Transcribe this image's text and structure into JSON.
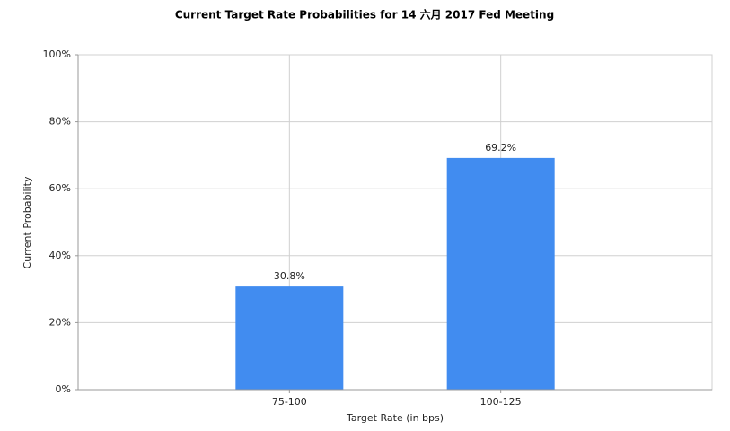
{
  "chart_data": {
    "type": "bar",
    "title": "Current Target Rate Probabilities for 14 六月 2017 Fed Meeting",
    "x_label": "Target Rate (in bps)",
    "y_label": "Current Probability",
    "categories": [
      "75-100",
      "100-125"
    ],
    "values": [
      30.8,
      69.2
    ],
    "value_labels": [
      "30.8%",
      "69.2%"
    ],
    "color": "#418cf0",
    "ylim": [
      0,
      100
    ],
    "yticks": [
      {
        "value": 0,
        "label": "0%"
      },
      {
        "value": 20,
        "label": "20%"
      },
      {
        "value": 40,
        "label": "40%"
      },
      {
        "value": 60,
        "label": "60%"
      },
      {
        "value": 80,
        "label": "80%"
      },
      {
        "value": 100,
        "label": "100%"
      }
    ],
    "grid": true
  }
}
